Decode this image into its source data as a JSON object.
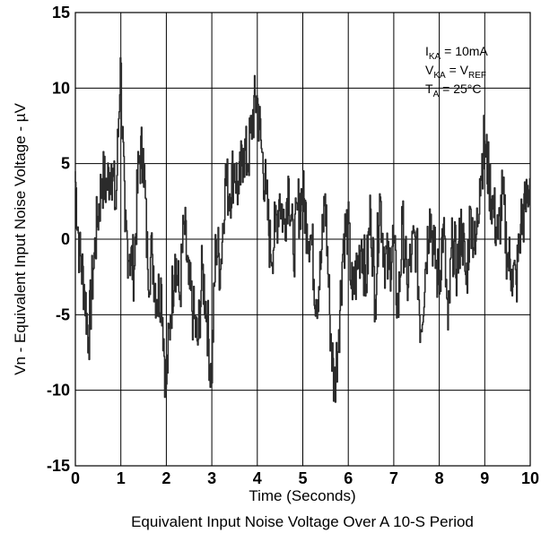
{
  "chart_data": {
    "type": "line",
    "title": "",
    "caption": "Equivalent Input Noise Voltage Over A 10-S Period",
    "xlabel": "Time (Seconds)",
    "ylabel": "Vn - Equivalent Input Noise Voltage - µV",
    "xlim": [
      0,
      10
    ],
    "ylim": [
      -15,
      15
    ],
    "xticks": [
      "0",
      "1",
      "2",
      "3",
      "4",
      "5",
      "6",
      "7",
      "8",
      "9",
      "10"
    ],
    "yticks": [
      "-15",
      "-10",
      "-5",
      "0",
      "5",
      "10",
      "15"
    ],
    "grid": true,
    "legend": "none",
    "annotations": [
      {
        "main": "I",
        "sub": "KA",
        "rest": " = 10mA",
        "sub2": "",
        "rest2": ""
      },
      {
        "main": "V",
        "sub": "KA",
        "rest": " = V",
        "sub2": "REF",
        "rest2": ""
      },
      {
        "main": "T",
        "sub": "A",
        "rest": " = 25°C",
        "sub2": "",
        "rest2": ""
      }
    ],
    "series": [
      {
        "color": "#2b2b2b",
        "x": [
          0,
          0.1,
          0.2,
          0.3,
          0.4,
          0.5,
          0.6,
          0.7,
          0.8,
          0.9,
          1.0,
          1.1,
          1.2,
          1.3,
          1.4,
          1.5,
          1.6,
          1.7,
          1.8,
          1.9,
          2.0,
          2.1,
          2.2,
          2.3,
          2.4,
          2.5,
          2.6,
          2.7,
          2.8,
          2.9,
          3.0,
          3.1,
          3.2,
          3.3,
          3.4,
          3.5,
          3.6,
          3.7,
          3.8,
          3.9,
          4.0,
          4.1,
          4.2,
          4.3,
          4.4,
          4.5,
          4.6,
          4.7,
          4.8,
          4.9,
          5.0,
          5.1,
          5.2,
          5.3,
          5.4,
          5.5,
          5.6,
          5.7,
          5.8,
          5.9,
          6.0,
          6.1,
          6.2,
          6.3,
          6.4,
          6.5,
          6.6,
          6.7,
          6.8,
          6.9,
          7.0,
          7.1,
          7.2,
          7.3,
          7.4,
          7.5,
          7.6,
          7.7,
          7.8,
          7.9,
          8.0,
          8.1,
          8.2,
          8.3,
          8.4,
          8.5,
          8.6,
          8.7,
          8.8,
          8.9,
          9.0,
          9.1,
          9.2,
          9.3,
          9.4,
          9.5,
          9.6,
          9.7,
          9.8,
          9.9,
          10.0
        ],
        "y": [
          4.5,
          -1,
          -3,
          -6.5,
          -2,
          1.5,
          4,
          3.5,
          5,
          2,
          12,
          0.5,
          -1,
          -2,
          5,
          6,
          -2,
          -1,
          -4,
          -3,
          -10,
          -5,
          -1,
          -4,
          1,
          -3,
          -5,
          -7,
          -2,
          -5,
          -9.5,
          0,
          -2,
          4,
          3,
          5,
          3,
          6,
          5,
          8,
          9.5,
          6,
          3,
          -1,
          0.5,
          3,
          1,
          4,
          -1,
          2,
          3,
          1,
          0,
          -4,
          -2,
          3,
          -5,
          -10,
          -6,
          0,
          1,
          -4,
          -2,
          0,
          -3,
          2,
          -4,
          3,
          -1,
          -2,
          0,
          -5,
          1,
          -3,
          -1,
          0,
          -6,
          -2,
          2,
          -1,
          -3,
          1,
          -6,
          0,
          -2,
          1,
          -3,
          2,
          -1,
          4,
          6.5,
          4,
          2,
          0,
          3,
          -1,
          -2,
          -3,
          1,
          2,
          4
        ]
      }
    ]
  }
}
